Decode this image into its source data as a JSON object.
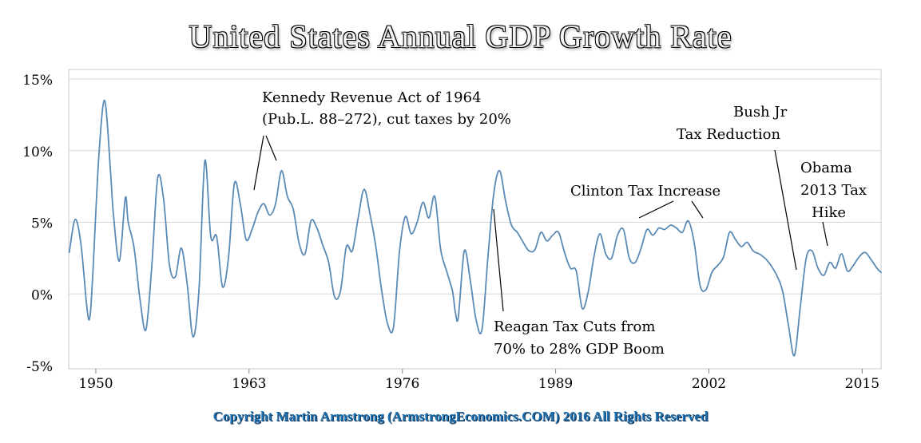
{
  "colors": {
    "line": "#5a8ab5",
    "grid": "#d8d8d8",
    "text": "#000000",
    "copyright": "#1b6fae"
  },
  "copyright": "Copyright Martin Armstrong (ArmstrongEconomics.COM) 2016 All Rights Reserved",
  "chart_data": {
    "type": "line",
    "title": "United States Annual GDP Growth Rate",
    "xlabel": "",
    "ylabel": "",
    "xlim": [
      1947.7,
      2016.6
    ],
    "ylim": [
      -5,
      15
    ],
    "grid": "horizontal",
    "y_ticks": [
      15,
      10,
      5,
      0,
      -5
    ],
    "y_tick_labels": [
      "15%",
      "10%",
      "5%",
      "0%",
      "-5%"
    ],
    "x_ticks": [
      1950,
      1963,
      1976,
      1989,
      2002,
      2015
    ],
    "x_tick_labels": [
      "1950",
      "1963",
      "1976",
      "1989",
      "2002",
      "2015"
    ],
    "series": [
      {
        "x": [
          1947.75,
          1948.25,
          1948.75,
          1949.25,
          1949.5,
          1949.75,
          1950.25,
          1950.75,
          1951.25,
          1951.5,
          1952.0,
          1952.5,
          1952.75,
          1953.25,
          1953.75,
          1954.25,
          1954.75,
          1955.25,
          1955.75,
          1956.25,
          1956.75,
          1957.25,
          1957.75,
          1958.25,
          1958.75,
          1959.25,
          1959.75,
          1960.25,
          1960.75,
          1961.25,
          1961.75,
          1962.25,
          1962.75,
          1963.25,
          1963.75,
          1964.25,
          1964.75,
          1965.25,
          1965.75,
          1966.25,
          1966.75,
          1967.25,
          1967.75,
          1968.25,
          1968.75,
          1969.25,
          1969.75,
          1970.25,
          1970.75,
          1971.25,
          1971.75,
          1972.25,
          1972.75,
          1973.25,
          1973.75,
          1974.25,
          1974.75,
          1975.25,
          1975.75,
          1976.25,
          1976.75,
          1977.25,
          1977.75,
          1978.25,
          1978.75,
          1979.25,
          1979.75,
          1980.25,
          1980.5,
          1980.75,
          1981.25,
          1981.75,
          1982.25,
          1982.75,
          1983.25,
          1983.75,
          1984.25,
          1984.75,
          1985.25,
          1985.75,
          1986.25,
          1986.75,
          1987.25,
          1987.75,
          1988.25,
          1988.75,
          1989.25,
          1989.75,
          1990.25,
          1990.75,
          1991.25,
          1991.75,
          1992.25,
          1992.75,
          1993.25,
          1993.75,
          1994.25,
          1994.75,
          1995.25,
          1995.75,
          1996.25,
          1996.75,
          1997.25,
          1997.75,
          1998.25,
          1998.75,
          1999.25,
          1999.75,
          2000.25,
          2000.75,
          2001.25,
          2001.75,
          2002.25,
          2002.75,
          2003.25,
          2003.75,
          2004.25,
          2004.75,
          2005.25,
          2005.75,
          2006.25,
          2006.75,
          2007.25,
          2007.75,
          2008.25,
          2008.75,
          2009.25,
          2009.75,
          2010.25,
          2010.75,
          2011.25,
          2011.75,
          2012.25,
          2012.75,
          2013.25,
          2013.75,
          2014.25,
          2014.75,
          2015.25,
          2015.75,
          2016.25,
          2016.6
        ],
        "y": [
          2.9,
          5.2,
          3.4,
          -1.0,
          -1.6,
          1.5,
          9.5,
          13.5,
          8.5,
          5.5,
          2.3,
          6.7,
          5.0,
          3.2,
          -0.4,
          -2.5,
          2.0,
          8.1,
          6.6,
          2.0,
          1.2,
          3.2,
          0.7,
          -3.0,
          0.3,
          9.3,
          4.0,
          4.0,
          0.5,
          2.5,
          7.7,
          6.3,
          3.8,
          4.5,
          5.7,
          6.3,
          5.5,
          6.3,
          8.6,
          6.8,
          5.9,
          3.5,
          2.8,
          5.1,
          4.6,
          3.4,
          2.2,
          -0.2,
          0.2,
          3.3,
          3.0,
          5.3,
          7.3,
          5.6,
          3.3,
          0.2,
          -2.1,
          -2.3,
          2.9,
          5.4,
          4.2,
          5.0,
          6.4,
          5.3,
          6.8,
          3.1,
          1.6,
          0.2,
          -1.3,
          -1.6,
          3.0,
          1.0,
          -1.8,
          -2.5,
          2.5,
          7.0,
          8.6,
          6.5,
          4.8,
          4.3,
          3.6,
          3.0,
          3.1,
          4.3,
          3.7,
          4.1,
          4.3,
          2.9,
          1.8,
          1.6,
          -1.0,
          0.1,
          2.6,
          4.2,
          2.8,
          2.5,
          4.1,
          4.5,
          2.5,
          2.2,
          3.2,
          4.5,
          4.1,
          4.6,
          4.5,
          4.8,
          4.6,
          4.3,
          5.1,
          3.6,
          0.6,
          0.3,
          1.5,
          2.0,
          2.6,
          4.3,
          3.8,
          3.3,
          3.6,
          3.0,
          2.8,
          2.5,
          2.0,
          1.3,
          0.2,
          -2.2,
          -4.3,
          -0.9,
          2.5,
          3.0,
          1.8,
          1.3,
          2.2,
          1.8,
          2.8,
          1.6,
          2.0,
          2.6,
          2.9,
          2.4,
          1.8,
          1.5
        ]
      }
    ],
    "annotations": [
      {
        "lines": [
          "Kennedy Revenue Act of 1964",
          "(Pub.L. 88–272), cut taxes by 20%"
        ]
      },
      {
        "lines": [
          "Bush Jr",
          "Tax Reduction"
        ]
      },
      {
        "lines": [
          "Obama",
          "2013 Tax",
          "Hike"
        ]
      },
      {
        "lines": [
          "Clinton Tax Increase"
        ]
      },
      {
        "lines": [
          "Reagan Tax Cuts from",
          "70% to 28% GDP Boom"
        ]
      }
    ]
  }
}
